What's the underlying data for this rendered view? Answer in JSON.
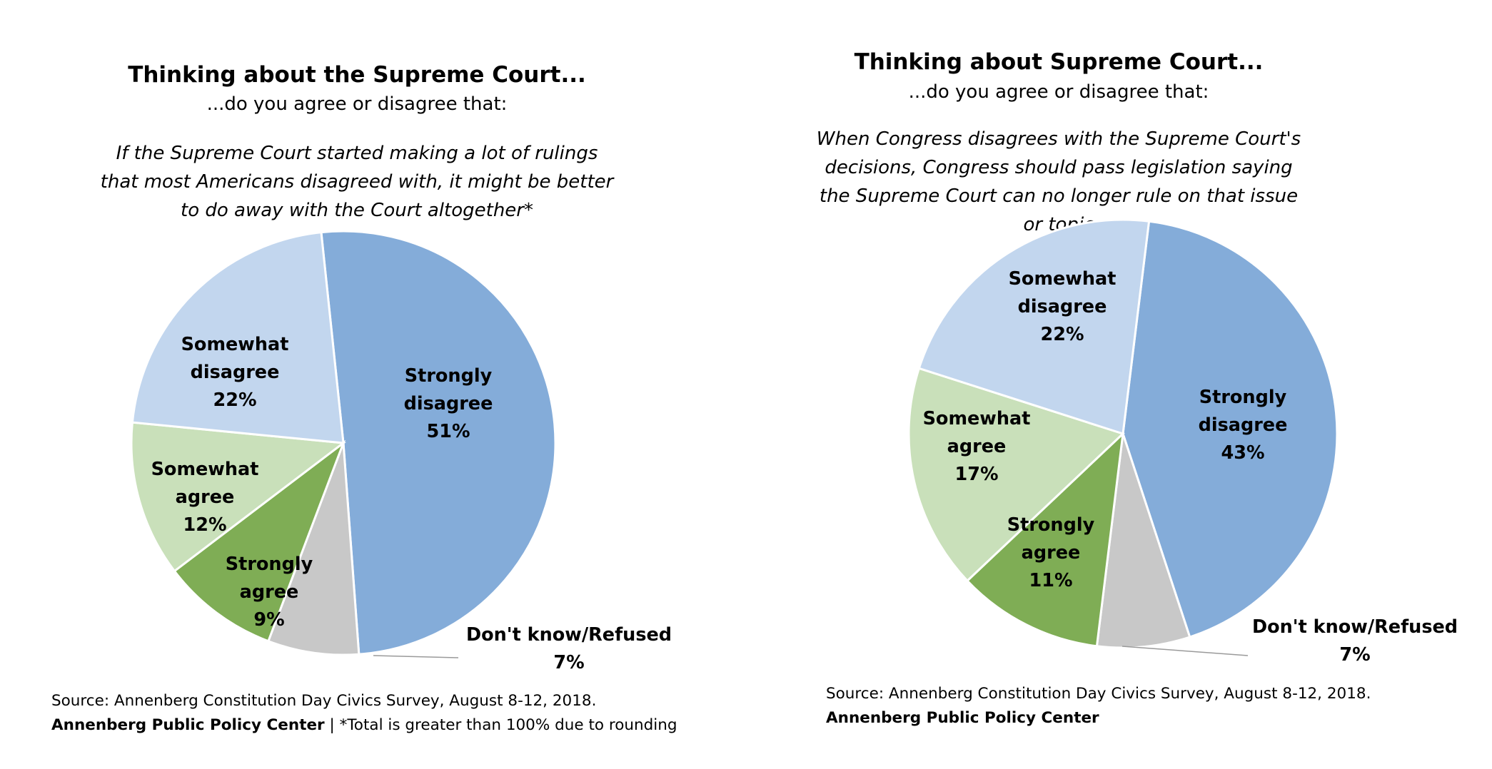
{
  "chart_data": [
    {
      "type": "pie",
      "title": "Thinking about the Supreme Court...",
      "subtitle": "...do you agree or disagree that:",
      "question": "If the Supreme Court started making a lot of rulings that most Americans disagreed with, it might be better to do away with the Court altogether*",
      "slices": [
        {
          "key": "strongly-disagree",
          "lines": [
            "Strongly",
            "disagree"
          ],
          "pct": "51%",
          "value": 51,
          "color": "#84ACD9"
        },
        {
          "key": "dont-know",
          "lines": [
            "Don't know/Refused"
          ],
          "pct": "7%",
          "value": 7,
          "color": "#C8C8C8"
        },
        {
          "key": "strongly-agree",
          "lines": [
            "Strongly",
            "agree"
          ],
          "pct": "9%",
          "value": 9,
          "color": "#7FAD55"
        },
        {
          "key": "somewhat-agree",
          "lines": [
            "Somewhat",
            "agree"
          ],
          "pct": "12%",
          "value": 12,
          "color": "#C9E0BA"
        },
        {
          "key": "somewhat-disagree",
          "lines": [
            "Somewhat",
            "disagree"
          ],
          "pct": "22%",
          "value": 22,
          "color": "#C2D6EE"
        }
      ],
      "source_line": "Source: Annenberg Constitution Day Civics Survey, August 8-12, 2018.",
      "org": "Annenberg Public Policy Center",
      "separator": " | ",
      "footnote": "*Total is greater than 100%  due to rounding"
    },
    {
      "type": "pie",
      "title": "Thinking about Supreme Court...",
      "subtitle": "...do you agree or disagree that:",
      "question": "When Congress disagrees with the Supreme Court's decisions, Congress should pass legislation saying the Supreme Court can no longer rule on that issue or topic",
      "slices": [
        {
          "key": "strongly-disagree",
          "lines": [
            "Strongly",
            "disagree"
          ],
          "pct": "43%",
          "value": 43,
          "color": "#84ACD9"
        },
        {
          "key": "dont-know",
          "lines": [
            "Don't know/Refused"
          ],
          "pct": "7%",
          "value": 7,
          "color": "#C8C8C8"
        },
        {
          "key": "strongly-agree",
          "lines": [
            "Strongly",
            "agree"
          ],
          "pct": "11%",
          "value": 11,
          "color": "#7FAD55"
        },
        {
          "key": "somewhat-agree",
          "lines": [
            "Somewhat",
            "agree"
          ],
          "pct": "17%",
          "value": 17,
          "color": "#C9E0BA"
        },
        {
          "key": "somewhat-disagree",
          "lines": [
            "Somewhat",
            "disagree"
          ],
          "pct": "22%",
          "value": 22,
          "color": "#C2D6EE"
        }
      ],
      "source_line": "Source: Annenberg Constitution Day Civics Survey, August 8-12, 2018.",
      "org": "Annenberg Public Policy Center"
    }
  ]
}
